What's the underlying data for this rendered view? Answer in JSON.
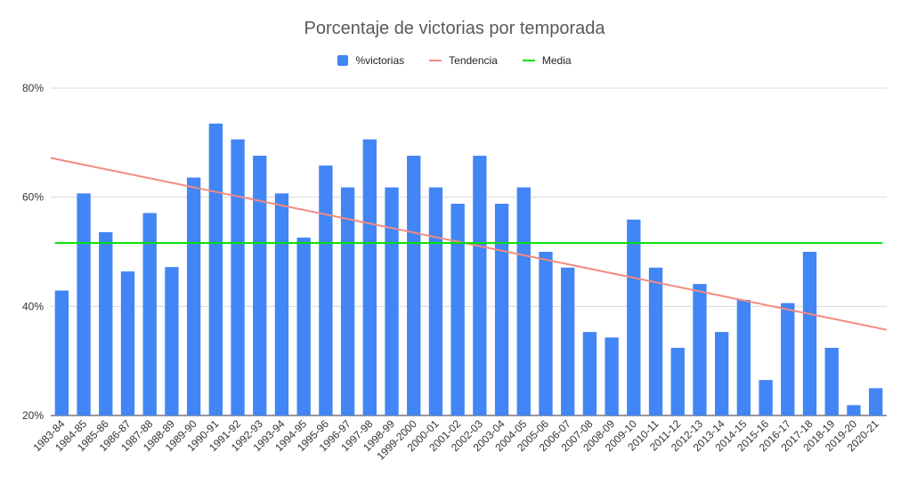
{
  "chart_data": {
    "type": "bar",
    "title": "Porcentaje de victorias por temporada",
    "xlabel": "",
    "ylabel": "",
    "ylim": [
      20,
      80
    ],
    "y_ticks": [
      "20%",
      "40%",
      "60%",
      "80%"
    ],
    "y_tick_values": [
      20,
      40,
      60,
      80
    ],
    "grid": true,
    "legend_position": "top-center",
    "categories": [
      "1983-84",
      "1984-85",
      "1985-86",
      "1986-87",
      "1987-88",
      "1988-89",
      "1989-90",
      "1990-91",
      "1991-92",
      "1992-93",
      "1993-94",
      "1994-95",
      "1995-96",
      "1996-97",
      "1997-98",
      "1998-99",
      "1999-2000",
      "2000-01",
      "2001-02",
      "2002-03",
      "2003-04",
      "2004-05",
      "2005-06",
      "2006-07",
      "2007-08",
      "2008-09",
      "2009-10",
      "2010-11",
      "2011-12",
      "2012-13",
      "2013-14",
      "2014-15",
      "2015-16",
      "2016-17",
      "2017-18",
      "2018-19",
      "2019-20",
      "2020-21"
    ],
    "series": [
      {
        "name": "%victorias",
        "kind": "bar",
        "color": "#4285f4",
        "values": [
          42.9,
          60.7,
          53.6,
          46.4,
          57.1,
          47.2,
          63.6,
          73.5,
          70.6,
          67.6,
          60.7,
          52.6,
          65.8,
          61.8,
          70.6,
          61.8,
          67.6,
          61.8,
          58.8,
          67.6,
          58.8,
          61.8,
          50.0,
          47.1,
          35.3,
          34.3,
          55.9,
          47.1,
          32.4,
          44.1,
          35.3,
          41.2,
          26.5,
          40.6,
          50.0,
          32.4,
          21.9,
          25.0
        ]
      },
      {
        "name": "Tendencia",
        "kind": "trendline",
        "color": "#f28b82",
        "start": 67.2,
        "end": 35.7
      },
      {
        "name": "Media",
        "kind": "constant",
        "color": "#00e000",
        "value": 51.6
      }
    ]
  }
}
